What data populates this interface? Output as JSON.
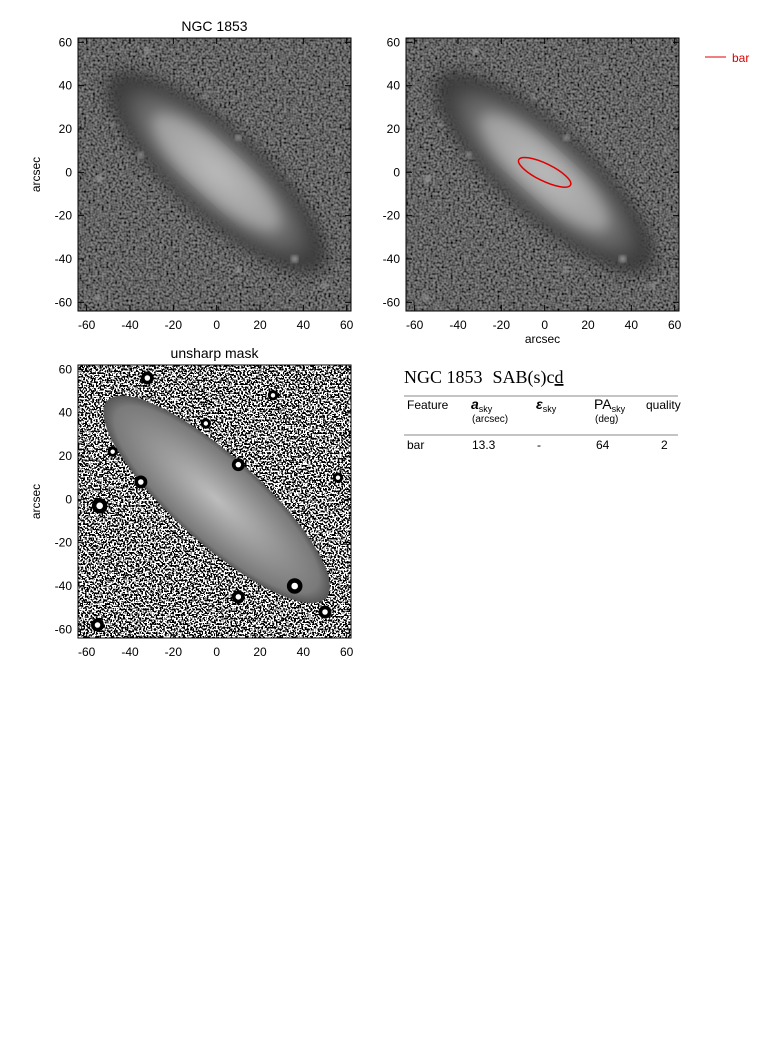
{
  "chart_data": [
    {
      "type": "image",
      "title": "NGC 1853",
      "ylabel": "arcsec",
      "xlim": [
        -64,
        62
      ],
      "ylim": [
        -64,
        62
      ],
      "xticks": [
        -60,
        -40,
        -20,
        0,
        20,
        40,
        60
      ],
      "yticks": [
        -60,
        -40,
        -20,
        0,
        20,
        40,
        60
      ]
    },
    {
      "type": "image",
      "xlabel": "arcsec",
      "xlim": [
        -64,
        62
      ],
      "ylim": [
        -64,
        62
      ],
      "xticks": [
        -60,
        -40,
        -20,
        0,
        20,
        40,
        60
      ],
      "yticks": [
        -60,
        -40,
        -20,
        0,
        20,
        40,
        60
      ],
      "overlays": [
        {
          "name": "bar",
          "color": "#e00000",
          "a": 13.3,
          "pa": 64
        }
      ],
      "legend": "outside-right"
    },
    {
      "type": "unsharp",
      "title": "unsharp mask",
      "ylabel": "arcsec",
      "xlim": [
        -64,
        62
      ],
      "ylim": [
        -64,
        62
      ],
      "xticks": [
        -60,
        -40,
        -20,
        0,
        20,
        40,
        60
      ],
      "yticks": [
        -60,
        -40,
        -20,
        0,
        20,
        40,
        60
      ]
    }
  ],
  "table": {
    "title": {
      "name": "NGC 1853",
      "type": "SAB(s)c",
      "type_underlined": "d"
    },
    "header": [
      {
        "label": "Feature"
      },
      {
        "label": "a",
        "sub": "sky",
        "unit": "(arcsec)"
      },
      {
        "label": "ε",
        "sub": "sky"
      },
      {
        "label": "PA",
        "sub": "sky",
        "unit": "(deg)"
      },
      {
        "label": "quality"
      }
    ],
    "rows": [
      [
        "bar",
        "13.3",
        "-",
        "64",
        "2"
      ]
    ]
  }
}
